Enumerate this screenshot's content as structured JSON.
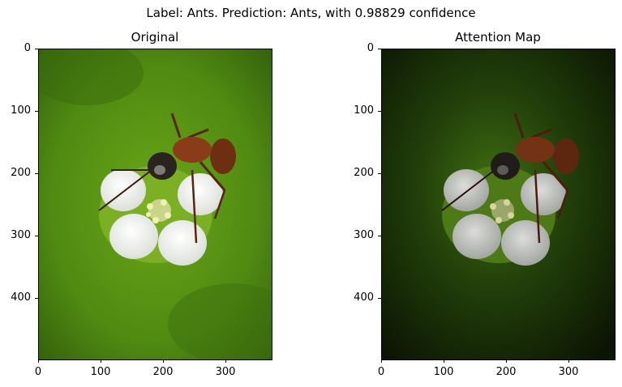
{
  "suptitle": "Label: Ants. Prediction: Ants, with 0.98829 confidence",
  "panels": [
    {
      "title": "Original",
      "image": "ant-on-white-flower-photo"
    },
    {
      "title": "Attention Map",
      "image": "ant-on-white-flower-attention-overlay"
    }
  ],
  "axes": {
    "yticks": [
      "0",
      "100",
      "200",
      "300",
      "400"
    ],
    "xticks": [
      "0",
      "100",
      "200",
      "300"
    ],
    "xlim": [
      0,
      375
    ],
    "ylim": [
      500,
      0
    ]
  },
  "colors": {
    "background_green": "#4f8a12",
    "petal": "#f2f2f2",
    "ant_body": "#7a3416",
    "attention_dark": "#0c1503"
  }
}
